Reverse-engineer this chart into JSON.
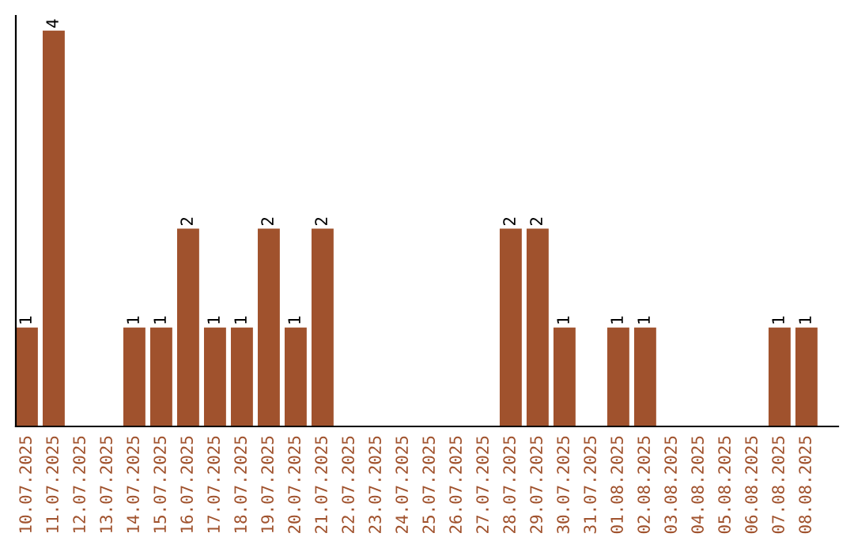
{
  "chart_data": {
    "type": "bar",
    "categories": [
      "10.07.2025",
      "11.07.2025",
      "12.07.2025",
      "13.07.2025",
      "14.07.2025",
      "15.07.2025",
      "16.07.2025",
      "17.07.2025",
      "18.07.2025",
      "19.07.2025",
      "20.07.2025",
      "21.07.2025",
      "22.07.2025",
      "23.07.2025",
      "24.07.2025",
      "25.07.2025",
      "26.07.2025",
      "27.07.2025",
      "28.07.2025",
      "29.07.2025",
      "30.07.2025",
      "31.07.2025",
      "01.08.2025",
      "02.08.2025",
      "03.08.2025",
      "04.08.2025",
      "05.08.2025",
      "06.08.2025",
      "07.08.2025",
      "08.08.2025"
    ],
    "values": [
      1,
      4,
      0,
      0,
      1,
      1,
      2,
      1,
      1,
      2,
      1,
      2,
      0,
      0,
      0,
      0,
      0,
      0,
      2,
      2,
      1,
      0,
      1,
      1,
      0,
      0,
      0,
      0,
      1,
      1
    ],
    "value_labels": [
      "1",
      "4",
      null,
      null,
      "1",
      "1",
      "2",
      "1",
      "1",
      "2",
      "1",
      "2",
      null,
      null,
      null,
      null,
      null,
      null,
      "2",
      "2",
      "1",
      null,
      "1",
      "1",
      null,
      null,
      null,
      null,
      "1",
      "1"
    ],
    "color": "#a0522d",
    "ylim": [
      0,
      4.15
    ],
    "tick_labels": "x",
    "grid": false,
    "legend": false
  }
}
